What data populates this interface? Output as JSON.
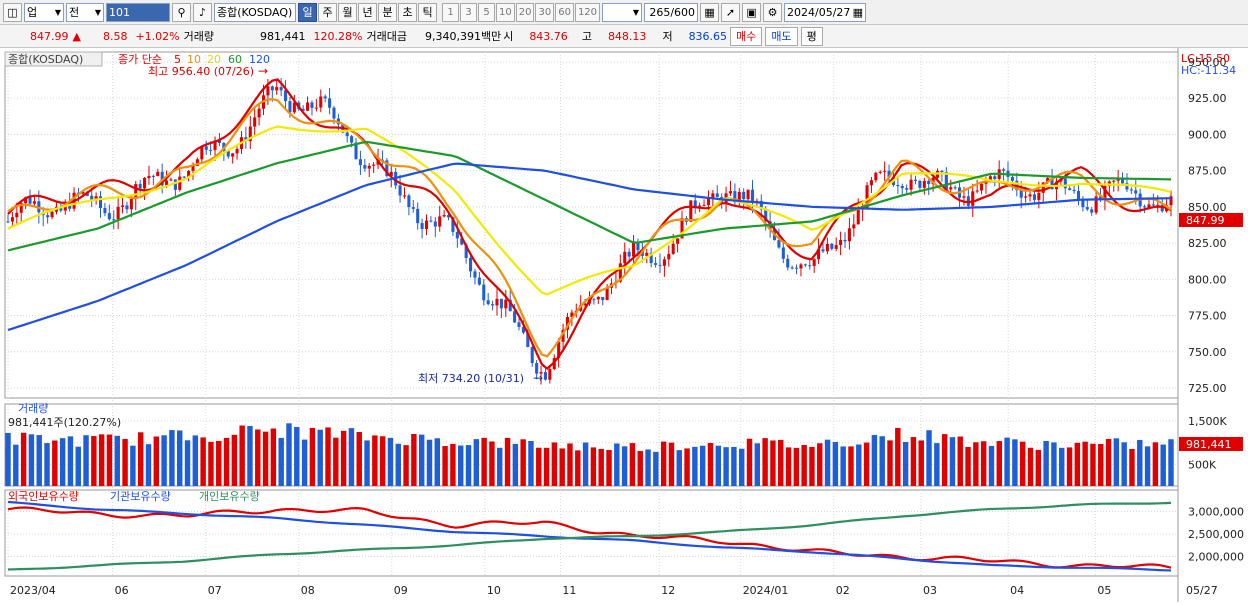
{
  "toolbar": {
    "market_code": "업",
    "period_prefix": "전",
    "symbol_code": "101",
    "symbol_name": "종합(KOSDAQ)",
    "period_buttons": [
      "일",
      "주",
      "월",
      "년",
      "분",
      "초",
      "틱"
    ],
    "interval_buttons": [
      "1",
      "3",
      "5",
      "10",
      "20",
      "30",
      "60",
      "120"
    ],
    "bar_count": "265/600",
    "date": "2024/05/27"
  },
  "quote": {
    "price": "847.99",
    "change": "8.58",
    "change_pct": "+1.02%",
    "volume_label": "거래량",
    "volume": "981,441",
    "volume_ratio": "120.28%",
    "amount_label": "거래대금",
    "amount": "9,340,391",
    "amount_unit": "백만",
    "open_label": "시",
    "open": "843.76",
    "high_label": "고",
    "high": "848.13",
    "low_label": "저",
    "low": "836.65",
    "buy_label": "매수",
    "sell_label": "매도",
    "eval_label": "평"
  },
  "price_panel": {
    "title": "종합(KOSDAQ)",
    "ma_label": "종가 단순",
    "ma_periods": [
      "5",
      "10",
      "20",
      "60",
      "120"
    ],
    "high_note": "최고 956.40 (07/26)",
    "low_note": "최저 734.20 (10/31)",
    "lc": "LC:15.50",
    "hc": "HC:-11.34",
    "current_price": "847.99",
    "current_pct": "1.02%"
  },
  "volume_panel": {
    "title": "거래량",
    "value": "981,441주(120.27%)",
    "current": "981,441",
    "current_pct": "120.27%"
  },
  "holdings_panel": {
    "labels": [
      "외국인보유수량",
      "기관보유수량",
      "개인보유수량"
    ]
  },
  "x_axis": {
    "labels": [
      "2023/04",
      "06",
      "07",
      "08",
      "09",
      "10",
      "11",
      "12",
      "2024/01",
      "02",
      "03",
      "04",
      "05"
    ],
    "end_label": "05/27"
  },
  "colors": {
    "up": "#e00000",
    "down": "#1e5fd8",
    "ma5": "#e00000",
    "ma10": "#f0900a",
    "ma20": "#f2ea00",
    "ma60": "#1a9a2a",
    "ma120": "#2050e0",
    "foreign": "#e00000",
    "institution": "#2050e0",
    "individual": "#2f8f5f"
  },
  "chart_data": [
    {
      "type": "candlestick",
      "title": "종합(KOSDAQ)",
      "x": [
        "2023/04",
        "06",
        "07",
        "08",
        "09",
        "10",
        "11",
        "12",
        "2024/01",
        "02",
        "03",
        "04",
        "05",
        "05/27"
      ],
      "close": [
        840,
        855,
        870,
        930,
        890,
        820,
        745,
        815,
        860,
        810,
        875,
        860,
        865,
        847.99
      ],
      "ylim": [
        725,
        950
      ],
      "yticks": [
        725,
        750,
        775,
        800,
        825,
        850,
        875,
        900,
        925,
        950
      ],
      "series": [
        {
          "name": "5",
          "values": [
            845,
            860,
            880,
            930,
            895,
            835,
            745,
            818,
            862,
            815,
            880,
            855,
            870,
            845
          ]
        },
        {
          "name": "10",
          "values": [
            842,
            858,
            875,
            920,
            900,
            845,
            755,
            812,
            860,
            820,
            878,
            862,
            866,
            850
          ]
        },
        {
          "name": "20",
          "values": [
            835,
            855,
            870,
            905,
            905,
            860,
            790,
            808,
            858,
            832,
            875,
            866,
            868,
            858
          ]
        },
        {
          "name": "60",
          "values": [
            820,
            835,
            860,
            880,
            895,
            885,
            855,
            825,
            835,
            840,
            858,
            873,
            870,
            869
          ]
        },
        {
          "name": "120",
          "values": [
            765,
            785,
            810,
            840,
            865,
            880,
            875,
            862,
            855,
            850,
            848,
            850,
            855,
            856
          ]
        }
      ]
    },
    {
      "type": "bar",
      "title": "거래량",
      "x": [
        "2023/04",
        "06",
        "07",
        "08",
        "09",
        "10",
        "11",
        "12",
        "2024/01",
        "02",
        "03",
        "04",
        "05",
        "05/27"
      ],
      "values": [
        1100000,
        1050000,
        1150000,
        1300000,
        1150000,
        1050000,
        950000,
        900000,
        1000000,
        950000,
        1200000,
        1000000,
        950000,
        981441
      ],
      "yticks": [
        500000,
        1000000,
        1500000
      ]
    },
    {
      "type": "line",
      "x": [
        "2023/04",
        "06",
        "07",
        "08",
        "09",
        "10",
        "11",
        "12",
        "2024/01",
        "02",
        "03",
        "04",
        "05",
        "05/27"
      ],
      "yticks": [
        2000000,
        2500000,
        3000000
      ],
      "series": [
        {
          "name": "외국인보유수량",
          "values": [
            3050000,
            2950000,
            2900000,
            3050000,
            3000000,
            2700000,
            2750000,
            2450000,
            2350000,
            2100000,
            2000000,
            1900000,
            1800000,
            1750000
          ]
        },
        {
          "name": "기관보유수량",
          "values": [
            3200000,
            3050000,
            2950000,
            2850000,
            2700000,
            2550000,
            2450000,
            2350000,
            2200000,
            2100000,
            1950000,
            1800000,
            1750000,
            1700000
          ]
        },
        {
          "name": "개인보유수량",
          "values": [
            1700000,
            1800000,
            1900000,
            2050000,
            2150000,
            2250000,
            2400000,
            2450000,
            2550000,
            2700000,
            2900000,
            3050000,
            3150000,
            3200000
          ]
        }
      ]
    }
  ]
}
